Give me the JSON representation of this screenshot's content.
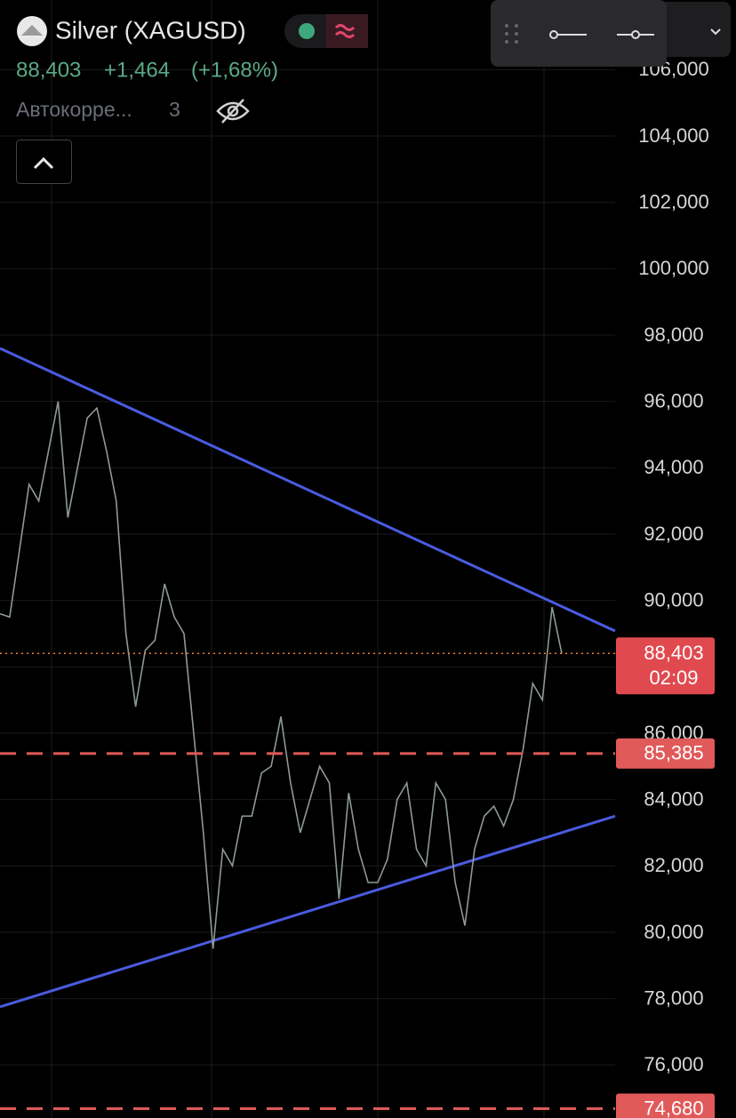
{
  "header": {
    "title": "Silver (XAGUSD)",
    "change": "+1,464",
    "change_pct": "(+1,68%)",
    "indicator": "Автокорре...",
    "indicator_count": "3"
  },
  "chart_data": {
    "type": "line",
    "ylim": [
      74.4,
      108.1
    ],
    "yticks": [
      {
        "value": 76,
        "label": "76,000"
      },
      {
        "value": 78,
        "label": "78,000"
      },
      {
        "value": 80,
        "label": "80,000"
      },
      {
        "value": 82,
        "label": "82,000"
      },
      {
        "value": 84,
        "label": "84,000"
      },
      {
        "value": 86,
        "label": "86,000"
      },
      {
        "value": 88,
        "label": "88,000"
      },
      {
        "value": 90,
        "label": "90,000"
      },
      {
        "value": 92,
        "label": "92,000"
      },
      {
        "value": 94,
        "label": "94,000"
      },
      {
        "value": 96,
        "label": "96,000"
      },
      {
        "value": 98,
        "label": "98,000"
      },
      {
        "value": 100,
        "label": "100,000"
      },
      {
        "value": 102,
        "label": "102,000"
      },
      {
        "value": 104,
        "label": "104,000"
      },
      {
        "value": 106,
        "label": "106,000"
      }
    ],
    "grid": true,
    "series": [
      {
        "color": "#8d9a92",
        "values": [
          89.6,
          89.5,
          91.5,
          93.5,
          93,
          94.5,
          96,
          92.5,
          94,
          95.5,
          95.8,
          94.5,
          93,
          89,
          86.8,
          88.5,
          88.8,
          90.5,
          89.5,
          89,
          86,
          83,
          79.5,
          82.5,
          82,
          83.5,
          83.5,
          84.8,
          85,
          86.5,
          84.5,
          83,
          84,
          85,
          84.5,
          81,
          84.2,
          82.5,
          81.5,
          81.5,
          82.2,
          84,
          84.5,
          82.5,
          82,
          84.5,
          84,
          81.5,
          80.2,
          82.5,
          83.5,
          83.8,
          83.2,
          84,
          85.5,
          87.5,
          87,
          89.8,
          88.4
        ]
      }
    ],
    "trendlines": [
      {
        "color": "#4a5be0",
        "values": [
          97.6,
          89.08
        ]
      },
      {
        "color": "#4a5be0",
        "values": [
          77.75,
          83.5
        ]
      }
    ],
    "levels": [
      {
        "value": 85.385,
        "label": "85,385",
        "color": "#e05a5a"
      },
      {
        "value": 74.68,
        "label": "74,680",
        "color": "#e05a5a"
      }
    ],
    "last_price": {
      "value": 88.403,
      "label": "88,403",
      "color": "#f0803c"
    },
    "countdown": "02:09"
  }
}
